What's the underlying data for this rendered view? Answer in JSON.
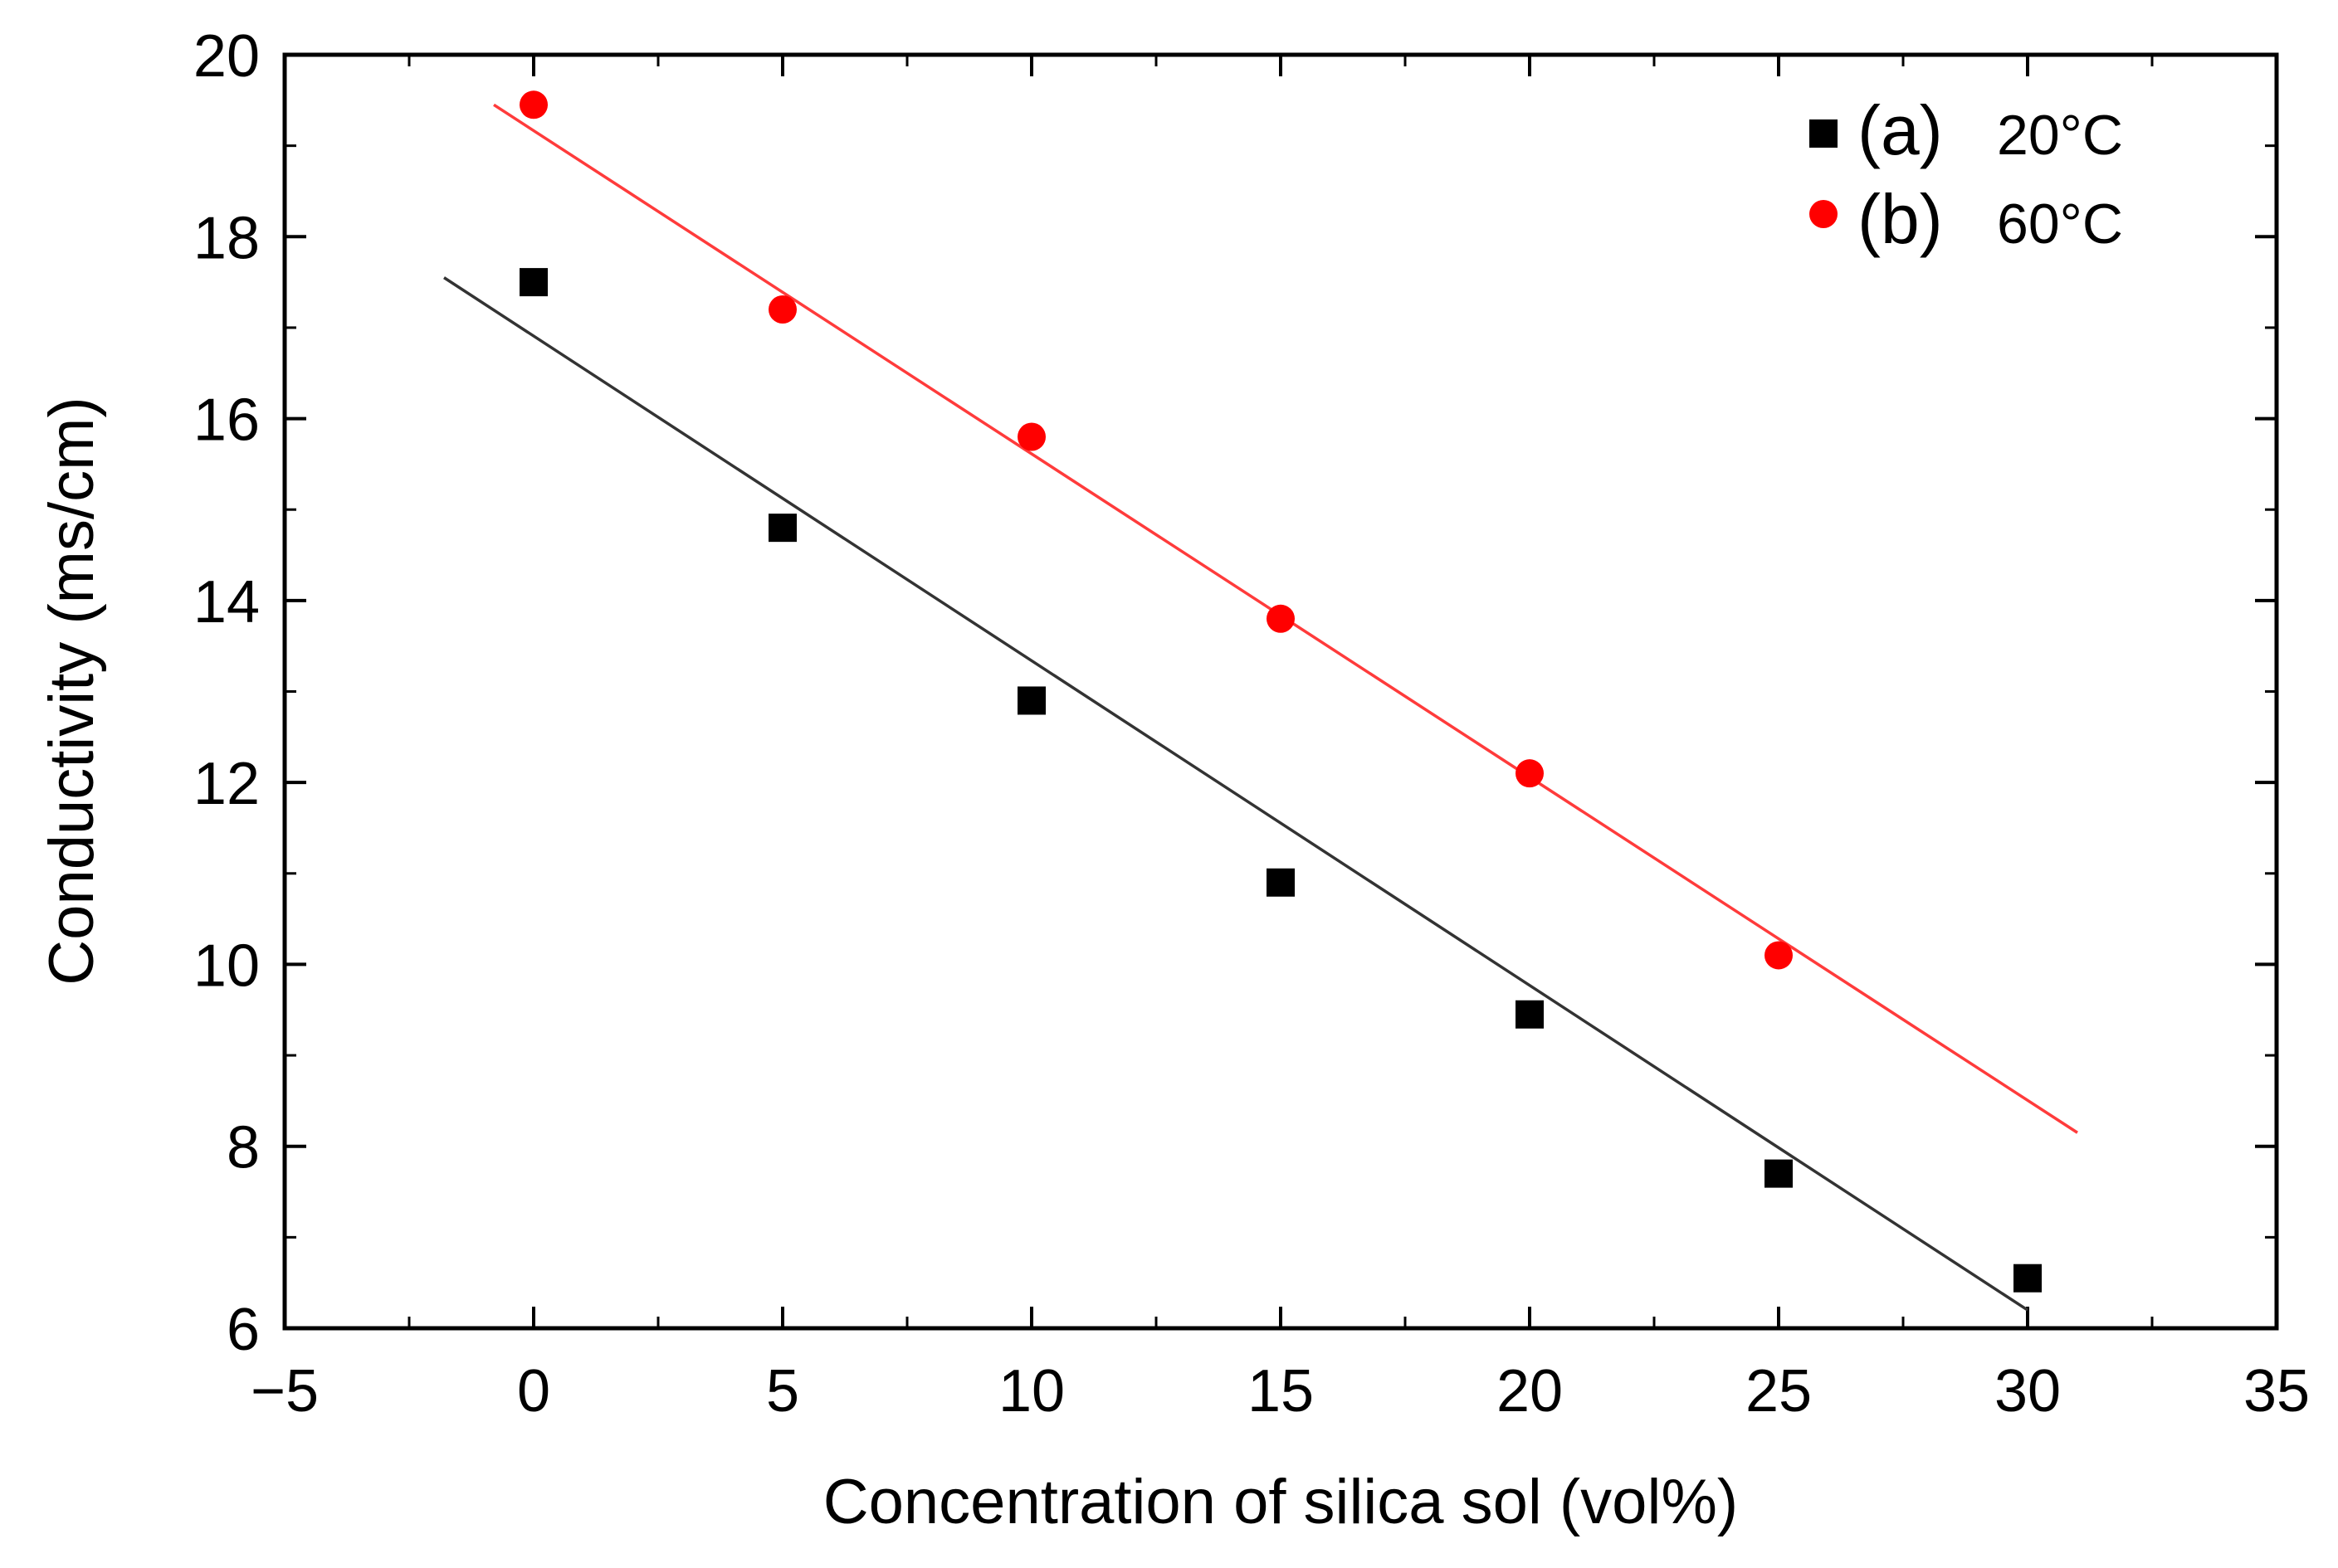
{
  "chart_data": {
    "type": "scatter",
    "title": "",
    "xlabel": "Concentration of silica sol (vol%)",
    "ylabel": "Conductivity (ms/cm)",
    "xlim": [
      -5,
      35
    ],
    "ylim": [
      6,
      20
    ],
    "xticks": [
      -5,
      0,
      5,
      10,
      15,
      20,
      25,
      30,
      35
    ],
    "xtick_labels": [
      "−5",
      "0",
      "5",
      "10",
      "15",
      "20",
      "25",
      "30",
      "35"
    ],
    "yticks": [
      6,
      8,
      10,
      12,
      14,
      16,
      18,
      20
    ],
    "ytick_labels": [
      "6",
      "8",
      "10",
      "12",
      "14",
      "16",
      "18",
      "20"
    ],
    "grid": false,
    "legend_position": "top-right",
    "series": [
      {
        "name": "(a) 20°C",
        "tag": "(a)",
        "temp": "20°C",
        "marker": "square",
        "color": "#000000",
        "line_color": "#333333",
        "x": [
          0,
          5,
          10,
          15,
          20,
          25,
          30
        ],
        "y": [
          17.5,
          14.8,
          12.9,
          10.9,
          9.45,
          7.7,
          6.55
        ],
        "fit": {
          "x": [
            -1.8,
            30
          ],
          "y": [
            17.55,
            6.2
          ]
        }
      },
      {
        "name": "(b) 60°C",
        "tag": "(b)",
        "temp": "60°C",
        "marker": "circle",
        "color": "#ff0000",
        "line_color": "#ff3b3b",
        "x": [
          0,
          5,
          10,
          15,
          20,
          25
        ],
        "y": [
          19.45,
          17.2,
          15.8,
          13.8,
          12.1,
          10.1
        ],
        "fit": {
          "x": [
            -0.8,
            31
          ],
          "y": [
            19.45,
            8.15
          ]
        }
      }
    ]
  }
}
